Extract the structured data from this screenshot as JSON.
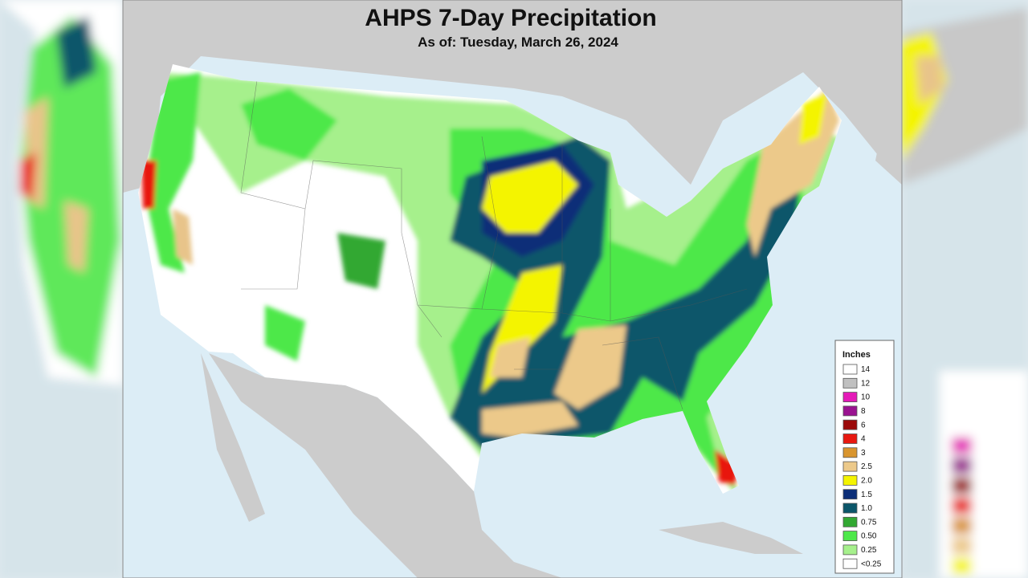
{
  "header": {
    "title": "AHPS 7-Day Precipitation",
    "subtitle": "As of: Tuesday, March 26, 2024"
  },
  "legend": {
    "title": "Inches",
    "items": [
      {
        "label": "14",
        "color": "#ffffff"
      },
      {
        "label": "12",
        "color": "#c0c0c0"
      },
      {
        "label": "10",
        "color": "#e41ab8"
      },
      {
        "label": "8",
        "color": "#9a1290"
      },
      {
        "label": "6",
        "color": "#9c0a0a"
      },
      {
        "label": "4",
        "color": "#e81810"
      },
      {
        "label": "3",
        "color": "#d9952e"
      },
      {
        "label": "2.5",
        "color": "#ecc98a"
      },
      {
        "label": "2.0",
        "color": "#f4f400"
      },
      {
        "label": "1.5",
        "color": "#0c2e78"
      },
      {
        "label": "1.0",
        "color": "#0b566a"
      },
      {
        "label": "0.75",
        "color": "#32a832"
      },
      {
        "label": "0.50",
        "color": "#4ee84a"
      },
      {
        "label": "0.25",
        "color": "#a6f08c"
      },
      {
        "label": "<0.25",
        "color": "#ffffff"
      }
    ]
  }
}
